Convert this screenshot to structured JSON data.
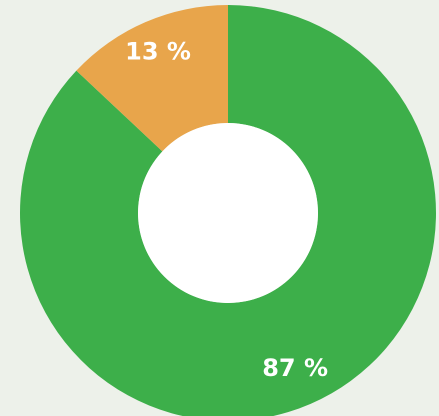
{
  "chart_data": {
    "type": "pie",
    "donut": true,
    "title": "",
    "start": "top",
    "direction": "clockwise",
    "slices": [
      {
        "label": "87 %",
        "value": 87,
        "color": "#3daf4a"
      },
      {
        "label": "13 %",
        "value": 13,
        "color": "#e8a54b"
      }
    ],
    "hole_color": "#ffffff",
    "background": "#edf1ea"
  }
}
